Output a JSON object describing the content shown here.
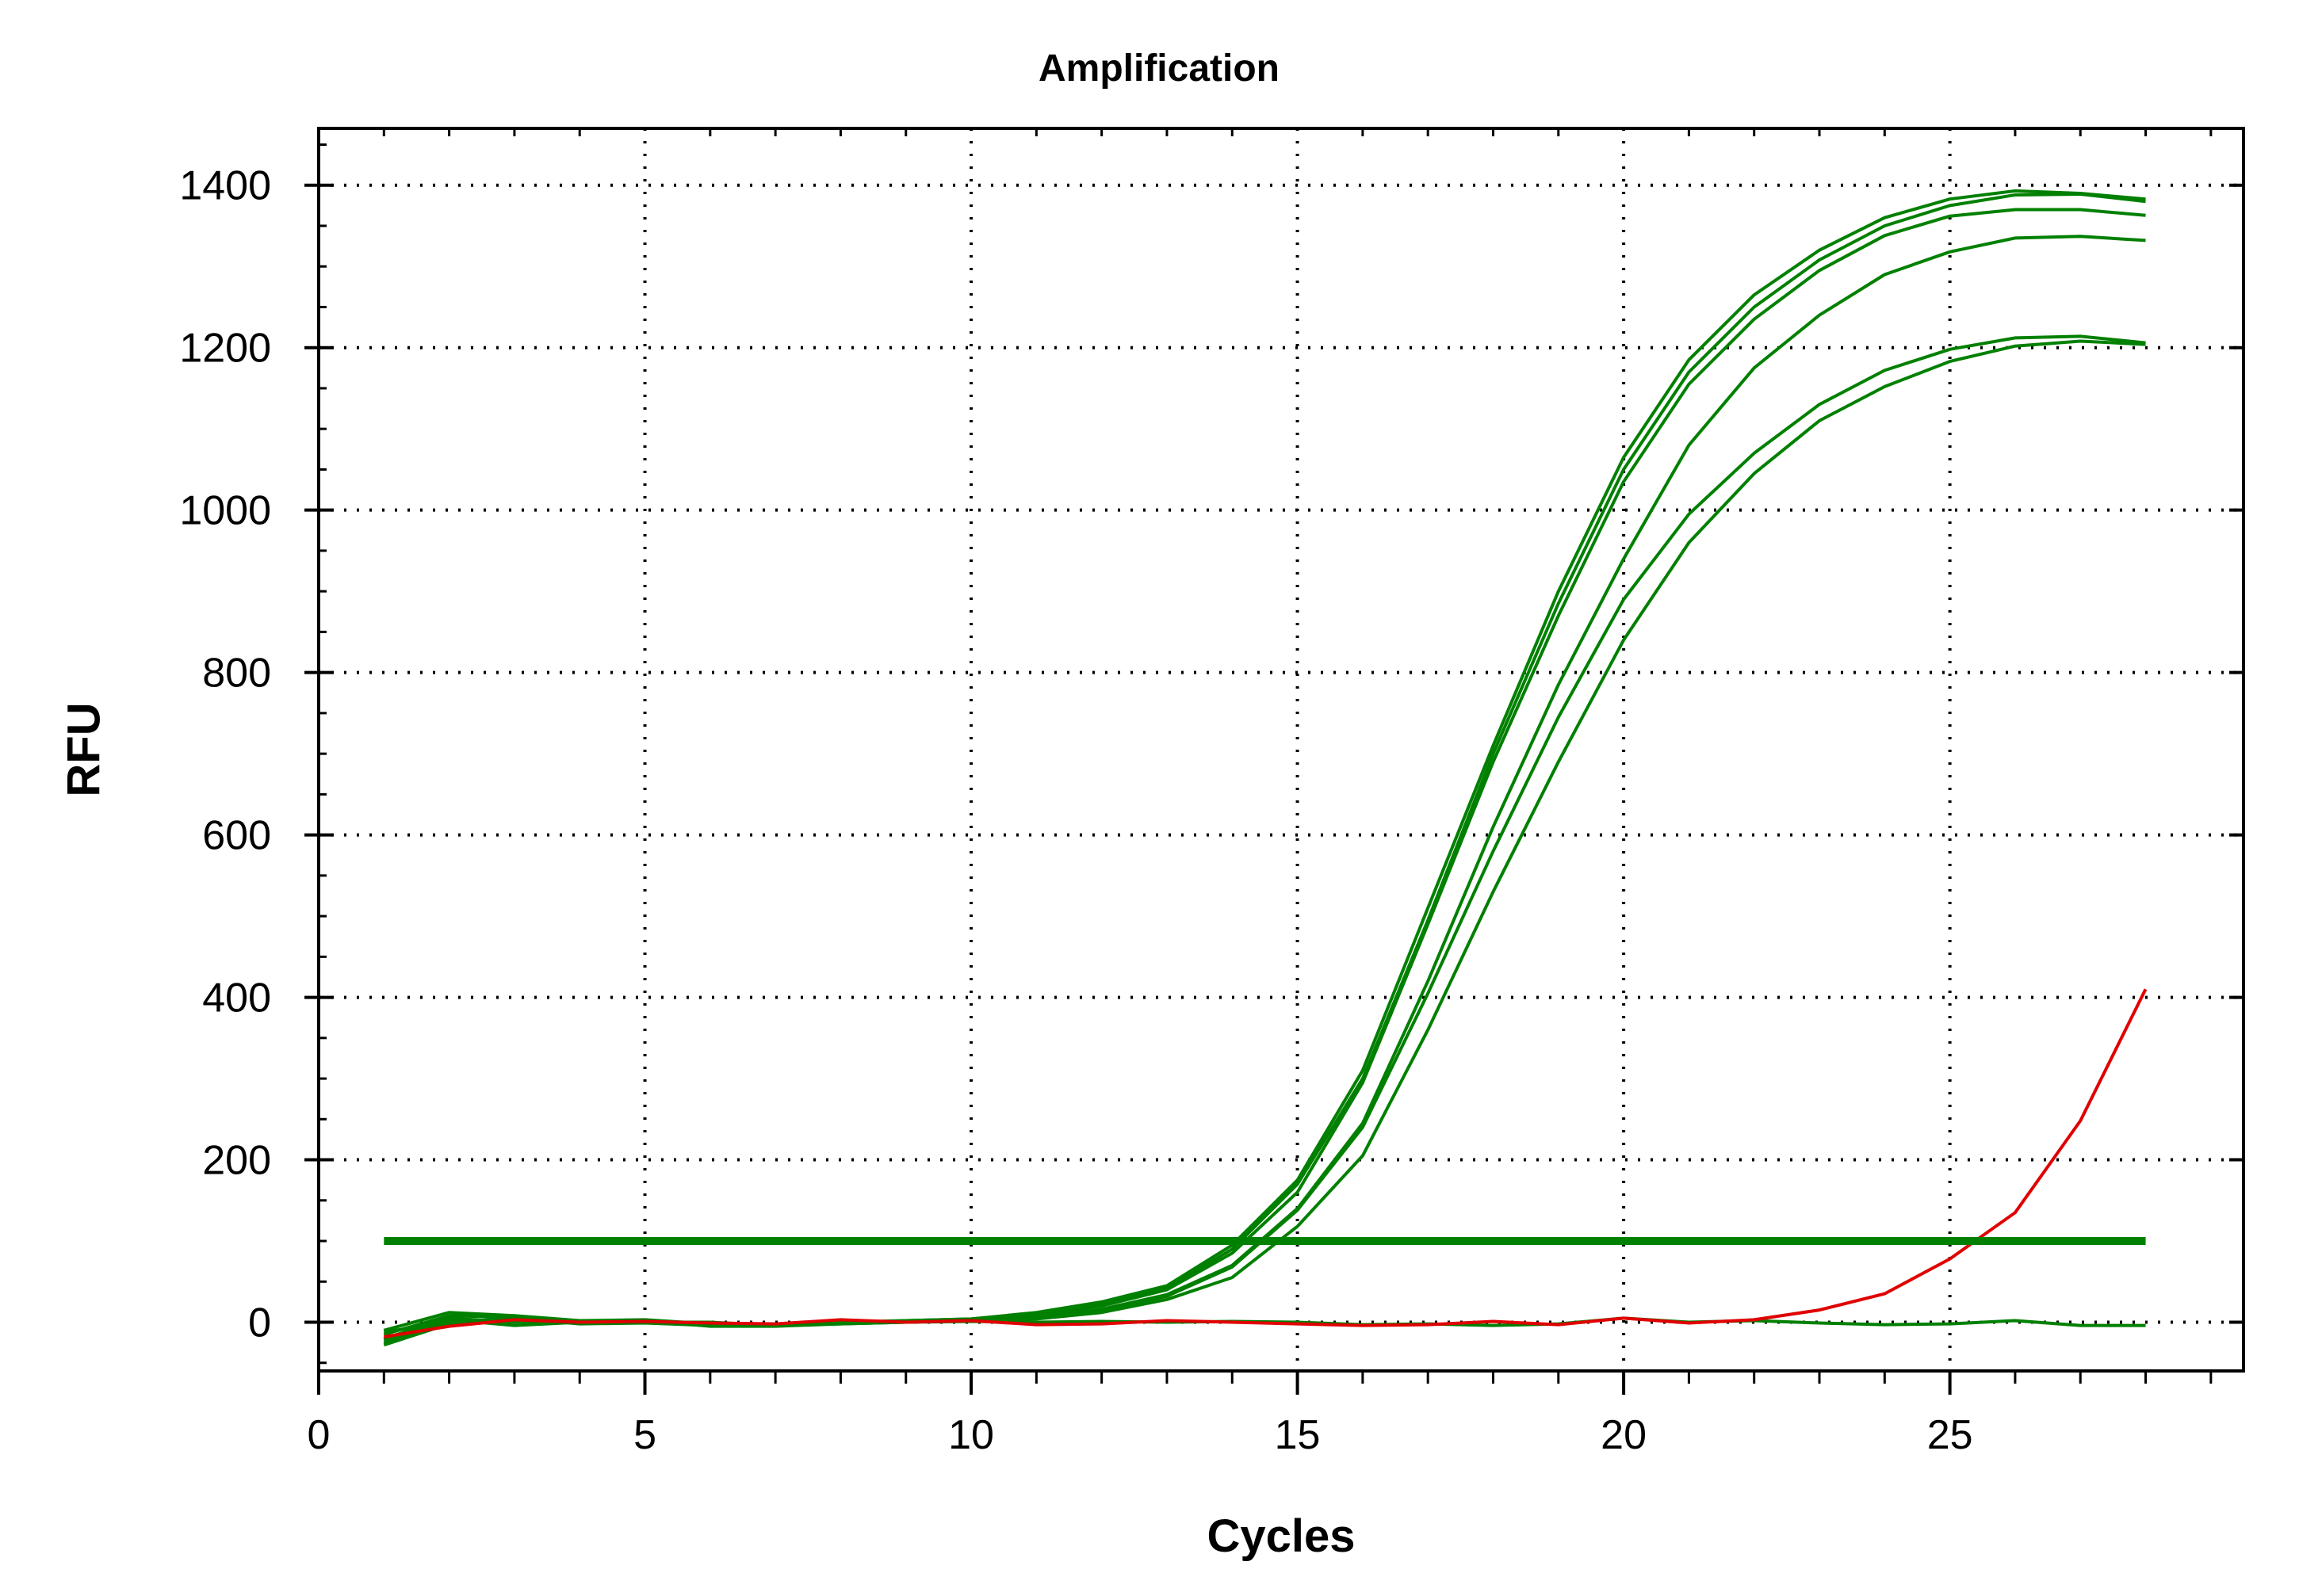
{
  "chart_data": {
    "type": "line",
    "title": "Amplification",
    "xlabel": "Cycles",
    "ylabel": "RFU",
    "xlim": [
      0,
      29.5
    ],
    "ylim": [
      -60,
      1470
    ],
    "xticks": [
      0,
      5,
      10,
      15,
      20,
      25
    ],
    "yticks": [
      0,
      200,
      400,
      600,
      800,
      1000,
      1200,
      1400
    ],
    "grid": true,
    "legend": "none",
    "x": [
      1,
      2,
      3,
      4,
      5,
      6,
      7,
      8,
      9,
      10,
      11,
      12,
      13,
      14,
      15,
      16,
      17,
      18,
      19,
      20,
      21,
      22,
      23,
      24,
      25,
      26,
      27,
      28
    ],
    "series": [
      {
        "color": "#008000",
        "values": [
          -10,
          12,
          8,
          2,
          3,
          -2,
          -3,
          0,
          2,
          4,
          12,
          25,
          45,
          95,
          175,
          310,
          510,
          710,
          900,
          1065,
          1185,
          1265,
          1320,
          1360,
          1383,
          1393,
          1390,
          1383
        ]
      },
      {
        "color": "#008000",
        "values": [
          -15,
          8,
          6,
          0,
          2,
          -3,
          -2,
          -1,
          2,
          4,
          10,
          22,
          42,
          90,
          170,
          300,
          495,
          700,
          885,
          1050,
          1170,
          1250,
          1308,
          1350,
          1375,
          1388,
          1389,
          1380
        ]
      },
      {
        "color": "#008000",
        "values": [
          -20,
          5,
          0,
          2,
          0,
          0,
          -4,
          0,
          1,
          3,
          9,
          20,
          40,
          85,
          160,
          295,
          490,
          690,
          870,
          1035,
          1155,
          1235,
          1295,
          1338,
          1362,
          1370,
          1370,
          1363
        ]
      },
      {
        "color": "#008000",
        "values": [
          -22,
          3,
          -4,
          0,
          2,
          -5,
          -5,
          -2,
          0,
          2,
          6,
          16,
          34,
          70,
          140,
          245,
          420,
          610,
          785,
          940,
          1080,
          1175,
          1240,
          1290,
          1318,
          1335,
          1337,
          1332
        ]
      },
      {
        "color": "#008000",
        "values": [
          -25,
          0,
          5,
          -2,
          -1,
          -4,
          -3,
          0,
          1,
          2,
          5,
          15,
          32,
          68,
          138,
          240,
          405,
          580,
          745,
          890,
          995,
          1070,
          1130,
          1172,
          1198,
          1212,
          1214,
          1206
        ]
      },
      {
        "color": "#008000",
        "values": [
          -28,
          -2,
          2,
          -1,
          0,
          -2,
          -4,
          -1,
          0,
          3,
          4,
          12,
          28,
          55,
          118,
          205,
          360,
          530,
          690,
          840,
          960,
          1045,
          1110,
          1152,
          1183,
          1202,
          1208,
          1204
        ]
      },
      {
        "color": "#008000",
        "values": [
          -12,
          0,
          2,
          0,
          1,
          -2,
          -3,
          -2,
          0,
          1,
          0,
          1,
          0,
          1,
          0,
          -3,
          -2,
          -4,
          -2,
          5,
          0,
          2,
          -1,
          -3,
          -2,
          2,
          -4,
          -4
        ]
      },
      {
        "color": "#e00000",
        "values": [
          -18,
          -5,
          3,
          0,
          1,
          -1,
          -2,
          3,
          0,
          2,
          -3,
          -2,
          2,
          0,
          -2,
          -4,
          -3,
          1,
          -3,
          5,
          -1,
          3,
          15,
          35,
          78,
          135,
          248,
          410
        ]
      }
    ],
    "threshold": {
      "value": 100,
      "x_range": [
        1,
        28
      ],
      "color": "#008000"
    }
  }
}
